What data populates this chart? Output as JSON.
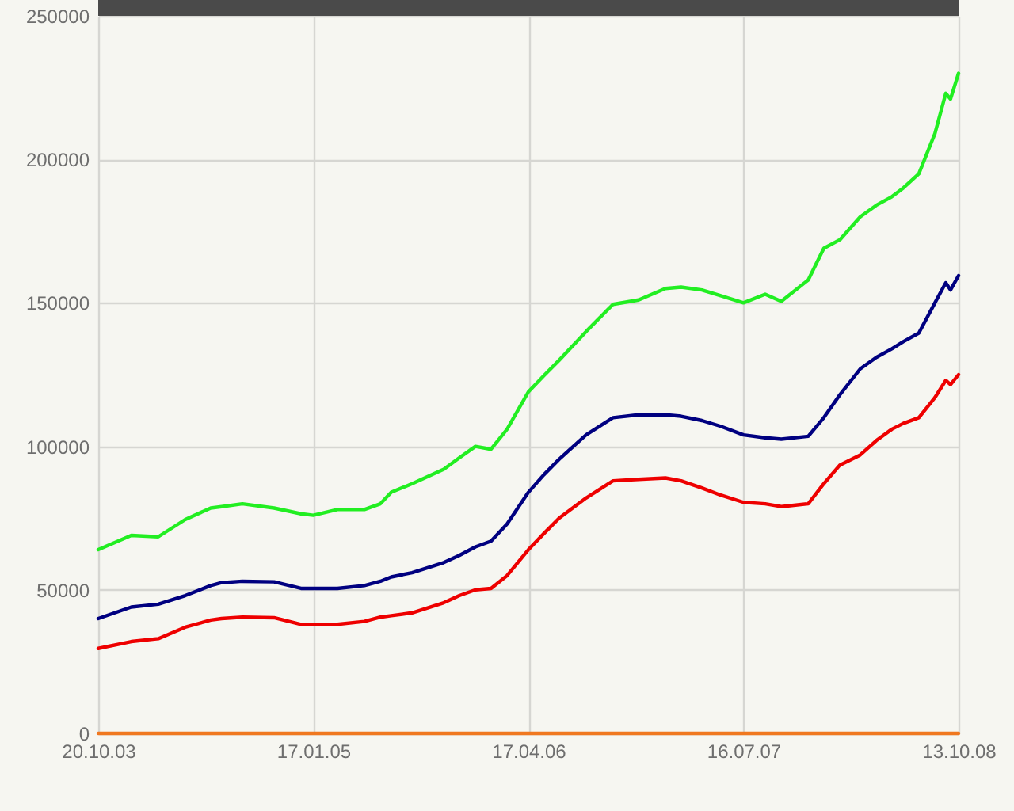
{
  "chart_data": {
    "type": "line",
    "x": [
      "2003-10-20",
      "2003-12-29",
      "2004-02-24",
      "2004-04-21",
      "2004-06-14",
      "2004-07-07",
      "2004-08-20",
      "2004-10-26",
      "2004-12-22",
      "2005-01-17",
      "2005-03-09",
      "2005-05-05",
      "2005-06-08",
      "2005-07-01",
      "2005-08-14",
      "2005-10-20",
      "2005-11-22",
      "2005-12-26",
      "2006-01-28",
      "2006-03-03",
      "2006-04-17",
      "2006-05-19",
      "2006-06-21",
      "2006-08-17",
      "2006-10-13",
      "2006-12-06",
      "2007-02-01",
      "2007-03-06",
      "2007-04-19",
      "2007-05-29",
      "2007-07-16",
      "2007-08-31",
      "2007-10-04",
      "2007-11-30",
      "2008-01-02",
      "2008-02-05",
      "2008-03-19",
      "2008-04-22",
      "2008-05-25",
      "2008-06-18",
      "2008-07-21",
      "2008-08-24",
      "2008-09-16",
      "2008-09-26",
      "2008-10-13"
    ],
    "series": [
      {
        "color": "#22ee22",
        "values": [
          64000,
          69000,
          68500,
          74500,
          78500,
          79000,
          80000,
          78500,
          76500,
          76000,
          78000,
          78000,
          80000,
          84000,
          87000,
          92000,
          96000,
          100000,
          99000,
          106000,
          119000,
          124500,
          130000,
          140000,
          149500,
          151000,
          155000,
          155500,
          154500,
          152500,
          150000,
          153000,
          150500,
          158000,
          169000,
          172000,
          180000,
          184000,
          187000,
          190000,
          195000,
          209000,
          223000,
          221000,
          230000
        ]
      },
      {
        "color": "#000080",
        "values": [
          40000,
          44000,
          45000,
          48000,
          51500,
          52500,
          53000,
          52800,
          50500,
          50500,
          50500,
          51500,
          53000,
          54500,
          56000,
          59500,
          62000,
          65000,
          67000,
          73000,
          84000,
          90000,
          95500,
          104000,
          110000,
          111000,
          111000,
          110500,
          109000,
          107000,
          104000,
          103000,
          102500,
          103500,
          110000,
          118000,
          127000,
          131000,
          134000,
          136500,
          139500,
          150000,
          157000,
          154500,
          159500
        ]
      },
      {
        "color": "#ee0000",
        "values": [
          29600,
          32000,
          33000,
          37000,
          39500,
          40000,
          40500,
          40300,
          38000,
          38000,
          38000,
          39000,
          40500,
          41000,
          42000,
          45500,
          48000,
          50000,
          50500,
          55000,
          64000,
          69500,
          75000,
          82000,
          88000,
          88500,
          89000,
          88000,
          85500,
          83000,
          80500,
          80000,
          79000,
          80000,
          87000,
          93500,
          97000,
          102000,
          106000,
          108000,
          110000,
          117000,
          123000,
          121500,
          125000
        ]
      },
      {
        "color": "#f07820",
        "x": [
          "2003-10-20",
          "2008-10-13"
        ],
        "values": [
          0,
          0
        ]
      }
    ],
    "xlim": [
      "2003-10-20",
      "2008-10-13"
    ],
    "xticks": [
      {
        "value": "2003-10-20",
        "label": "20.10.03"
      },
      {
        "value": "2005-01-17",
        "label": "17.01.05"
      },
      {
        "value": "2006-04-17",
        "label": "17.04.06"
      },
      {
        "value": "2007-07-16",
        "label": "16.07.07"
      },
      {
        "value": "2008-10-13",
        "label": "13.10.08"
      }
    ],
    "ylim": [
      0,
      250000
    ],
    "yticks": [
      0,
      50000,
      100000,
      150000,
      200000,
      250000
    ],
    "grid": true
  }
}
